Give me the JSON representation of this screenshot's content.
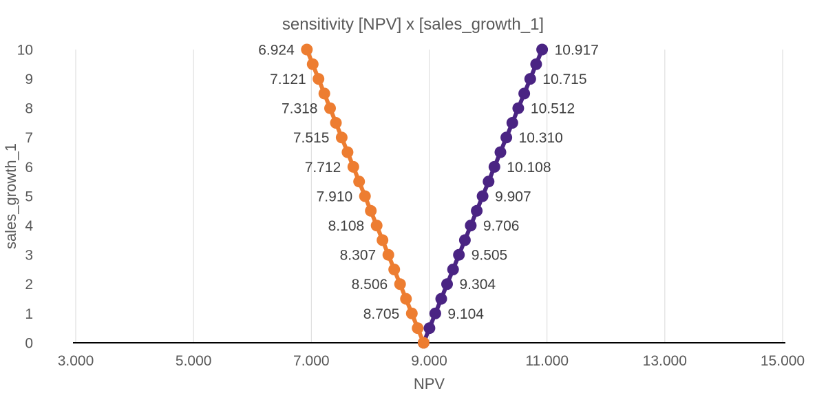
{
  "chart_data": {
    "type": "line",
    "title": "sensitivity [NPV] x [sales_growth_1]",
    "xlabel": "NPV",
    "ylabel": "sales_growth_1",
    "xlim": [
      3,
      15
    ],
    "ylim": [
      0,
      10
    ],
    "grid": {
      "vertical": true,
      "horizontal": false,
      "color": "#D9D9D9"
    },
    "axis_line_color": "#000000",
    "legend": "none",
    "x_ticks": [
      {
        "value": 3,
        "label": "3.000"
      },
      {
        "value": 5,
        "label": "5.000"
      },
      {
        "value": 7,
        "label": "7.000"
      },
      {
        "value": 9,
        "label": "9.000"
      },
      {
        "value": 11,
        "label": "11.000"
      },
      {
        "value": 13,
        "label": "13.000"
      },
      {
        "value": 15,
        "label": "15.000"
      }
    ],
    "y_ticks": [
      {
        "value": 0,
        "label": "0"
      },
      {
        "value": 1,
        "label": "1"
      },
      {
        "value": 2,
        "label": "2"
      },
      {
        "value": 3,
        "label": "3"
      },
      {
        "value": 4,
        "label": "4"
      },
      {
        "value": 5,
        "label": "5"
      },
      {
        "value": 6,
        "label": "6"
      },
      {
        "value": 7,
        "label": "7"
      },
      {
        "value": 8,
        "label": "8"
      },
      {
        "value": 9,
        "label": "9"
      },
      {
        "value": 10,
        "label": "10"
      }
    ],
    "series": [
      {
        "id": "right-branch",
        "color": "#4A2483",
        "label_side": "right",
        "points": [
          [
            8.905,
            0
          ],
          [
            9.005,
            0.5
          ],
          [
            9.104,
            1
          ],
          [
            9.204,
            1.5
          ],
          [
            9.304,
            2
          ],
          [
            9.405,
            2.5
          ],
          [
            9.505,
            3
          ],
          [
            9.606,
            3.5
          ],
          [
            9.706,
            4
          ],
          [
            9.807,
            4.5
          ],
          [
            9.907,
            5
          ],
          [
            10.008,
            5.5
          ],
          [
            10.108,
            6
          ],
          [
            10.209,
            6.5
          ],
          [
            10.31,
            7
          ],
          [
            10.411,
            7.5
          ],
          [
            10.512,
            8
          ],
          [
            10.614,
            8.5
          ],
          [
            10.715,
            9
          ],
          [
            10.816,
            9.5
          ],
          [
            10.917,
            10
          ]
        ],
        "data_labels": [
          {
            "text": "9.104",
            "x": 9.104,
            "y": 1
          },
          {
            "text": "9.304",
            "x": 9.304,
            "y": 2
          },
          {
            "text": "9.505",
            "x": 9.505,
            "y": 3
          },
          {
            "text": "9.706",
            "x": 9.706,
            "y": 4
          },
          {
            "text": "9.907",
            "x": 9.907,
            "y": 5
          },
          {
            "text": "10.108",
            "x": 10.108,
            "y": 6
          },
          {
            "text": "10.310",
            "x": 10.31,
            "y": 7
          },
          {
            "text": "10.512",
            "x": 10.512,
            "y": 8
          },
          {
            "text": "10.715",
            "x": 10.715,
            "y": 9
          },
          {
            "text": "10.917",
            "x": 10.917,
            "y": 10
          }
        ]
      },
      {
        "id": "left-branch",
        "color": "#ED7D31",
        "label_side": "left",
        "points": [
          [
            8.905,
            0
          ],
          [
            8.805,
            0.5
          ],
          [
            8.705,
            1
          ],
          [
            8.606,
            1.5
          ],
          [
            8.506,
            2
          ],
          [
            8.407,
            2.5
          ],
          [
            8.307,
            3
          ],
          [
            8.208,
            3.5
          ],
          [
            8.108,
            4
          ],
          [
            8.009,
            4.5
          ],
          [
            7.91,
            5
          ],
          [
            7.811,
            5.5
          ],
          [
            7.712,
            6
          ],
          [
            7.614,
            6.5
          ],
          [
            7.515,
            7
          ],
          [
            7.417,
            7.5
          ],
          [
            7.318,
            8
          ],
          [
            7.22,
            8.5
          ],
          [
            7.121,
            9
          ],
          [
            7.023,
            9.5
          ],
          [
            6.924,
            10
          ]
        ],
        "data_labels": [
          {
            "text": "8.705",
            "x": 8.705,
            "y": 1
          },
          {
            "text": "8.506",
            "x": 8.506,
            "y": 2
          },
          {
            "text": "8.307",
            "x": 8.307,
            "y": 3
          },
          {
            "text": "8.108",
            "x": 8.108,
            "y": 4
          },
          {
            "text": "7.910",
            "x": 7.91,
            "y": 5
          },
          {
            "text": "7.712",
            "x": 7.712,
            "y": 6
          },
          {
            "text": "7.515",
            "x": 7.515,
            "y": 7
          },
          {
            "text": "7.318",
            "x": 7.318,
            "y": 8
          },
          {
            "text": "7.121",
            "x": 7.121,
            "y": 9
          },
          {
            "text": "6.924",
            "x": 6.924,
            "y": 10
          }
        ]
      }
    ]
  }
}
